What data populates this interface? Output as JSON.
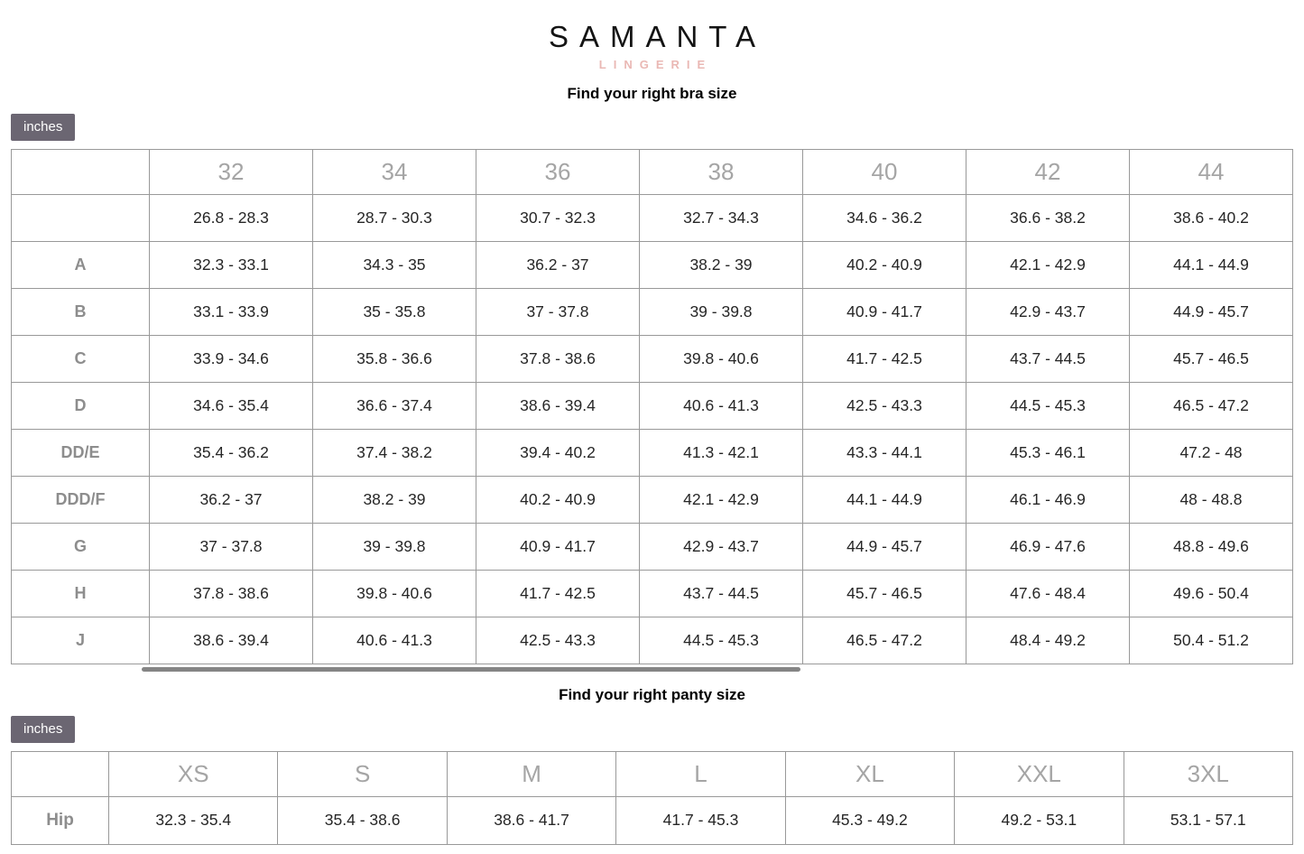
{
  "brand": {
    "name": "SAMANTA",
    "tagline": "LINGERIE"
  },
  "bra_section": {
    "title": "Find your right bra size",
    "unit_label": "inches",
    "table": {
      "columns": [
        "32",
        "34",
        "36",
        "38",
        "40",
        "42",
        "44"
      ],
      "rows": [
        {
          "label": "",
          "values": [
            "26.8 - 28.3",
            "28.7 - 30.3",
            "30.7 - 32.3",
            "32.7 - 34.3",
            "34.6 - 36.2",
            "36.6 - 38.2",
            "38.6 - 40.2"
          ]
        },
        {
          "label": "A",
          "values": [
            "32.3 - 33.1",
            "34.3 - 35",
            "36.2 - 37",
            "38.2 - 39",
            "40.2 - 40.9",
            "42.1 - 42.9",
            "44.1 - 44.9"
          ]
        },
        {
          "label": "B",
          "values": [
            "33.1 - 33.9",
            "35 - 35.8",
            "37 - 37.8",
            "39 - 39.8",
            "40.9 - 41.7",
            "42.9 - 43.7",
            "44.9 - 45.7"
          ]
        },
        {
          "label": "C",
          "values": [
            "33.9 - 34.6",
            "35.8 - 36.6",
            "37.8 - 38.6",
            "39.8 - 40.6",
            "41.7 - 42.5",
            "43.7 - 44.5",
            "45.7 - 46.5"
          ]
        },
        {
          "label": "D",
          "values": [
            "34.6 - 35.4",
            "36.6 - 37.4",
            "38.6 - 39.4",
            "40.6 - 41.3",
            "42.5 - 43.3",
            "44.5 - 45.3",
            "46.5 - 47.2"
          ]
        },
        {
          "label": "DD/E",
          "values": [
            "35.4 - 36.2",
            "37.4 - 38.2",
            "39.4 - 40.2",
            "41.3 - 42.1",
            "43.3 - 44.1",
            "45.3 - 46.1",
            "47.2 - 48"
          ]
        },
        {
          "label": "DDD/F",
          "values": [
            "36.2 - 37",
            "38.2 - 39",
            "40.2 - 40.9",
            "42.1 - 42.9",
            "44.1 - 44.9",
            "46.1 - 46.9",
            "48 - 48.8"
          ]
        },
        {
          "label": "G",
          "values": [
            "37 - 37.8",
            "39 - 39.8",
            "40.9 - 41.7",
            "42.9 - 43.7",
            "44.9 - 45.7",
            "46.9 - 47.6",
            "48.8 - 49.6"
          ]
        },
        {
          "label": "H",
          "values": [
            "37.8 - 38.6",
            "39.8 - 40.6",
            "41.7 - 42.5",
            "43.7 - 44.5",
            "45.7 - 46.5",
            "47.6 - 48.4",
            "49.6 - 50.4"
          ]
        },
        {
          "label": "J",
          "values": [
            "38.6 - 39.4",
            "40.6 - 41.3",
            "42.5 - 43.3",
            "44.5 - 45.3",
            "46.5 - 47.2",
            "48.4 - 49.2",
            "50.4 - 51.2"
          ]
        }
      ]
    }
  },
  "panty_section": {
    "title": "Find your right panty size",
    "unit_label": "inches",
    "table": {
      "columns": [
        "XS",
        "S",
        "M",
        "L",
        "XL",
        "XXL",
        "3XL"
      ],
      "rows": [
        {
          "label": "Hip",
          "values": [
            "32.3 - 35.4",
            "35.4 - 38.6",
            "38.6 - 41.7",
            "41.7 - 45.3",
            "45.3 - 49.2",
            "49.2 - 53.1",
            "53.1 - 57.1"
          ]
        }
      ]
    }
  },
  "colors": {
    "accent_pink": "#eab8b4",
    "badge_bg": "#6b6672",
    "table_border": "#999999",
    "column_header_text": "#a5a5a5",
    "row_label_text": "#8d8d8d",
    "cell_text": "#262626"
  }
}
